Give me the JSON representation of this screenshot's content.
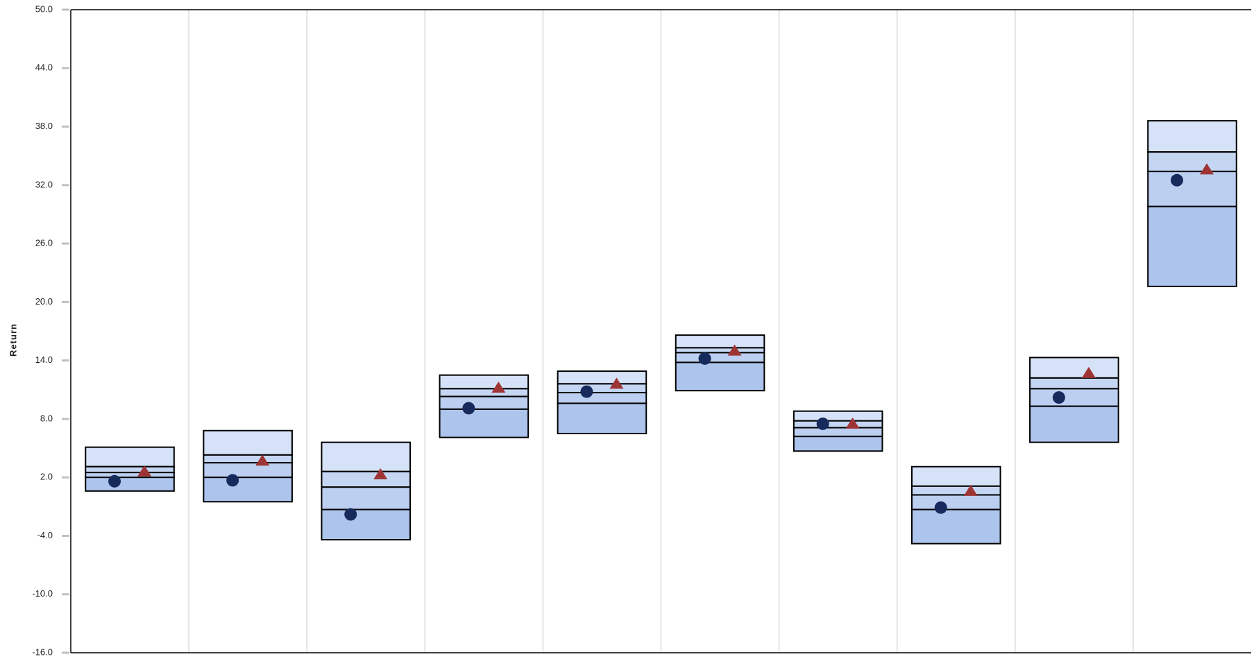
{
  "chart_data": {
    "type": "box",
    "y_label": "Return",
    "ylim": [
      -16,
      50
    ],
    "yticks": [
      {
        "value": -16,
        "label": "-16.0"
      },
      {
        "value": -10,
        "label": "-10.0"
      },
      {
        "value": -4,
        "label": "-4.0"
      },
      {
        "value": 2,
        "label": "2.0"
      },
      {
        "value": 8,
        "label": "8.0"
      },
      {
        "value": 14,
        "label": "14.0"
      },
      {
        "value": 20,
        "label": "20.0"
      },
      {
        "value": 26,
        "label": "26.0"
      },
      {
        "value": 32,
        "label": "32.0"
      },
      {
        "value": 38,
        "label": "38.0"
      },
      {
        "value": 44,
        "label": "44.0"
      },
      {
        "value": 50,
        "label": "50.0"
      }
    ],
    "categories": [
      null,
      null,
      null,
      null,
      null,
      null,
      null,
      null,
      null,
      null
    ],
    "box_colors": [
      "#d6e2f7",
      "#c5d6f3",
      "#bccff1",
      "#adc4ed"
    ],
    "boxes": [
      {
        "high": 5.1,
        "upper": 3.1,
        "mid": 2.5,
        "lower": 2.0,
        "low": 0.6
      },
      {
        "high": 6.8,
        "upper": 4.3,
        "mid": 3.5,
        "lower": 2.0,
        "low": -0.5
      },
      {
        "high": 5.6,
        "upper": 2.6,
        "mid": 1.0,
        "lower": -1.3,
        "low": -4.4
      },
      {
        "high": 12.5,
        "upper": 11.1,
        "mid": 10.3,
        "lower": 9.0,
        "low": 6.1
      },
      {
        "high": 12.9,
        "upper": 11.6,
        "mid": 10.7,
        "lower": 9.6,
        "low": 6.5
      },
      {
        "high": 16.6,
        "upper": 15.3,
        "mid": 14.8,
        "lower": 13.8,
        "low": 10.9
      },
      {
        "high": 8.8,
        "upper": 7.8,
        "mid": 7.1,
        "lower": 6.2,
        "low": 4.7
      },
      {
        "high": 3.1,
        "upper": 1.1,
        "mid": 0.2,
        "lower": -1.3,
        "low": -4.8
      },
      {
        "high": 14.3,
        "upper": 12.2,
        "mid": 11.1,
        "lower": 9.3,
        "low": 5.6
      },
      {
        "high": 38.6,
        "upper": 35.4,
        "mid": 33.4,
        "lower": 29.8,
        "low": 21.6
      }
    ],
    "series": [
      {
        "marker": "circle",
        "color": "#172a5c",
        "values": [
          1.6,
          1.7,
          -1.8,
          9.1,
          10.8,
          14.2,
          7.5,
          -1.1,
          10.2,
          32.5
        ]
      },
      {
        "marker": "triangle",
        "color": "#9e3434",
        "values": [
          2.6,
          3.7,
          2.3,
          11.2,
          11.6,
          15.0,
          7.5,
          0.6,
          12.7,
          33.6
        ]
      }
    ]
  }
}
